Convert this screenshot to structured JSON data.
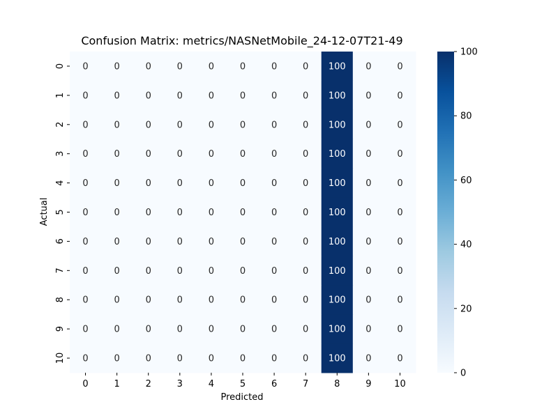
{
  "chart_data": {
    "type": "heatmap",
    "title": "Confusion Matrix: metrics/NASNetMobile_24-12-07T21-49",
    "xlabel": "Predicted",
    "ylabel": "Actual",
    "x_categories": [
      "0",
      "1",
      "2",
      "3",
      "4",
      "5",
      "6",
      "7",
      "8",
      "9",
      "10"
    ],
    "y_categories": [
      "0",
      "1",
      "2",
      "3",
      "4",
      "5",
      "6",
      "7",
      "8",
      "9",
      "10"
    ],
    "values": [
      [
        0,
        0,
        0,
        0,
        0,
        0,
        0,
        0,
        100,
        0,
        0
      ],
      [
        0,
        0,
        0,
        0,
        0,
        0,
        0,
        0,
        100,
        0,
        0
      ],
      [
        0,
        0,
        0,
        0,
        0,
        0,
        0,
        0,
        100,
        0,
        0
      ],
      [
        0,
        0,
        0,
        0,
        0,
        0,
        0,
        0,
        100,
        0,
        0
      ],
      [
        0,
        0,
        0,
        0,
        0,
        0,
        0,
        0,
        100,
        0,
        0
      ],
      [
        0,
        0,
        0,
        0,
        0,
        0,
        0,
        0,
        100,
        0,
        0
      ],
      [
        0,
        0,
        0,
        0,
        0,
        0,
        0,
        0,
        100,
        0,
        0
      ],
      [
        0,
        0,
        0,
        0,
        0,
        0,
        0,
        0,
        100,
        0,
        0
      ],
      [
        0,
        0,
        0,
        0,
        0,
        0,
        0,
        0,
        100,
        0,
        0
      ],
      [
        0,
        0,
        0,
        0,
        0,
        0,
        0,
        0,
        100,
        0,
        0
      ],
      [
        0,
        0,
        0,
        0,
        0,
        0,
        0,
        0,
        100,
        0,
        0
      ]
    ],
    "colorbar": {
      "min": 0,
      "max": 100,
      "ticks": [
        0,
        20,
        40,
        60,
        80,
        100
      ],
      "colormap": "Blues",
      "low_color": "#f7fbff",
      "high_color": "#08306b"
    }
  }
}
